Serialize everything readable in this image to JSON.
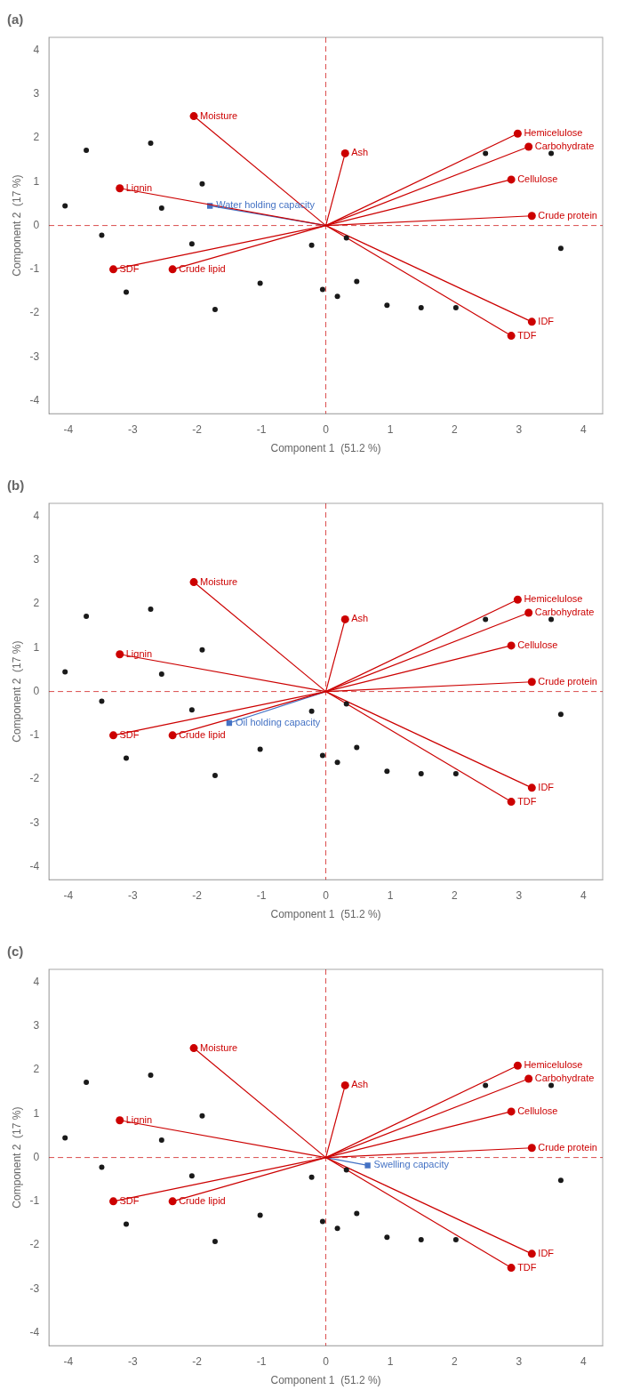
{
  "chart_data": [
    {
      "type": "scatter",
      "title": "(a)",
      "xlabel": "Component 1  (51.2 %)",
      "ylabel": "Component 2  (17 %)",
      "xlim": [
        -4.3,
        4.3
      ],
      "ylim": [
        -4.3,
        4.3
      ],
      "xticks": [
        -4,
        -3,
        -2,
        -1,
        0,
        1,
        2,
        3,
        4
      ],
      "yticks": [
        -4,
        -3,
        -2,
        -1,
        0,
        1,
        2,
        3,
        4
      ],
      "grid": false,
      "reference_lines": [
        {
          "axis": "y",
          "value": 0,
          "color": "#CC0000",
          "line_style": "dashed"
        },
        {
          "axis": "x",
          "value": 0,
          "color": "#CC0000",
          "line_style": "dashed"
        }
      ],
      "series": [
        {
          "type": "scatter",
          "color": "#1a1a1a",
          "marker": "circle",
          "x": [
            -4.05,
            -3.72,
            -3.48,
            -3.1,
            -2.72,
            -2.55,
            -2.08,
            -1.92,
            -1.72,
            -1.02,
            -0.22,
            0.18,
            0.48,
            0.95,
            1.48,
            2.02,
            2.48,
            3.5,
            3.65,
            -0.05,
            0.32
          ],
          "y": [
            0.45,
            1.72,
            -0.22,
            -1.52,
            1.88,
            0.4,
            -0.42,
            0.95,
            -1.92,
            -1.32,
            -0.45,
            -1.62,
            -1.28,
            -1.82,
            -1.88,
            -1.88,
            1.65,
            1.65,
            -0.52,
            -1.46,
            -0.28
          ]
        },
        {
          "type": "vector",
          "color": "#CC0000",
          "marker": "circle",
          "x": [
            -2.05,
            0.3,
            2.98,
            3.15,
            2.88,
            3.2,
            -3.2,
            -2.38,
            -3.3,
            3.2,
            2.88
          ],
          "y": [
            2.5,
            1.65,
            2.1,
            1.8,
            1.05,
            0.22,
            0.85,
            -1.0,
            -1.0,
            -2.2,
            -2.52
          ],
          "point_labels": [
            "Moisture",
            "Ash",
            "Hemicelulose",
            "Carbohydrate",
            "Cellulose",
            "Crude protein",
            "Lignin",
            "Crude lipid",
            "SDF",
            "IDF",
            "TDF"
          ]
        },
        {
          "type": "vector",
          "color": "#4472C4",
          "marker": "square",
          "x": [
            -1.8
          ],
          "y": [
            0.45
          ],
          "point_labels": [
            "Water holding capacity"
          ]
        }
      ]
    },
    {
      "type": "scatter",
      "title": "(b)",
      "xlabel": "Component 1  (51.2 %)",
      "ylabel": "Component 2  (17 %)",
      "xlim": [
        -4.3,
        4.3
      ],
      "ylim": [
        -4.3,
        4.3
      ],
      "xticks": [
        -4,
        -3,
        -2,
        -1,
        0,
        1,
        2,
        3,
        4
      ],
      "yticks": [
        -4,
        -3,
        -2,
        -1,
        0,
        1,
        2,
        3,
        4
      ],
      "grid": false,
      "reference_lines": [
        {
          "axis": "y",
          "value": 0,
          "color": "#CC0000",
          "line_style": "dashed"
        },
        {
          "axis": "x",
          "value": 0,
          "color": "#CC0000",
          "line_style": "dashed"
        }
      ],
      "series": [
        {
          "type": "scatter",
          "color": "#1a1a1a",
          "marker": "circle",
          "x": [
            -4.05,
            -3.72,
            -3.48,
            -3.1,
            -2.72,
            -2.55,
            -2.08,
            -1.92,
            -1.72,
            -1.02,
            -0.22,
            0.18,
            0.48,
            0.95,
            1.48,
            2.02,
            2.48,
            3.5,
            3.65,
            -0.05,
            0.32
          ],
          "y": [
            0.45,
            1.72,
            -0.22,
            -1.52,
            1.88,
            0.4,
            -0.42,
            0.95,
            -1.92,
            -1.32,
            -0.45,
            -1.62,
            -1.28,
            -1.82,
            -1.88,
            -1.88,
            1.65,
            1.65,
            -0.52,
            -1.46,
            -0.28
          ]
        },
        {
          "type": "vector",
          "color": "#CC0000",
          "marker": "circle",
          "x": [
            -2.05,
            0.3,
            2.98,
            3.15,
            2.88,
            3.2,
            -3.2,
            -2.38,
            -3.3,
            3.2,
            2.88
          ],
          "y": [
            2.5,
            1.65,
            2.1,
            1.8,
            1.05,
            0.22,
            0.85,
            -1.0,
            -1.0,
            -2.2,
            -2.52
          ],
          "point_labels": [
            "Moisture",
            "Ash",
            "Hemicelulose",
            "Carbohydrate",
            "Cellulose",
            "Crude protein",
            "Lignin",
            "Crude lipid",
            "SDF",
            "IDF",
            "TDF"
          ]
        },
        {
          "type": "vector",
          "color": "#4472C4",
          "marker": "square",
          "x": [
            -1.5
          ],
          "y": [
            -0.72
          ],
          "point_labels": [
            "Oil holding capacity"
          ]
        }
      ]
    },
    {
      "type": "scatter",
      "title": "(c)",
      "xlabel": "Component 1  (51.2 %)",
      "ylabel": "Component 2  (17 %)",
      "xlim": [
        -4.3,
        4.3
      ],
      "ylim": [
        -4.3,
        4.3
      ],
      "xticks": [
        -4,
        -3,
        -2,
        -1,
        0,
        1,
        2,
        3,
        4
      ],
      "yticks": [
        -4,
        -3,
        -2,
        -1,
        0,
        1,
        2,
        3,
        4
      ],
      "grid": false,
      "reference_lines": [
        {
          "axis": "y",
          "value": 0,
          "color": "#CC0000",
          "line_style": "dashed"
        },
        {
          "axis": "x",
          "value": 0,
          "color": "#CC0000",
          "line_style": "dashed"
        }
      ],
      "series": [
        {
          "type": "scatter",
          "color": "#1a1a1a",
          "marker": "circle",
          "x": [
            -4.05,
            -3.72,
            -3.48,
            -3.1,
            -2.72,
            -2.55,
            -2.08,
            -1.92,
            -1.72,
            -1.02,
            -0.22,
            0.18,
            0.48,
            0.95,
            1.48,
            2.02,
            2.48,
            3.5,
            3.65,
            -0.05,
            0.32
          ],
          "y": [
            0.45,
            1.72,
            -0.22,
            -1.52,
            1.88,
            0.4,
            -0.42,
            0.95,
            -1.92,
            -1.32,
            -0.45,
            -1.62,
            -1.28,
            -1.82,
            -1.88,
            -1.88,
            1.65,
            1.65,
            -0.52,
            -1.46,
            -0.28
          ]
        },
        {
          "type": "vector",
          "color": "#CC0000",
          "marker": "circle",
          "x": [
            -2.05,
            0.3,
            2.98,
            3.15,
            2.88,
            3.2,
            -3.2,
            -2.38,
            -3.3,
            3.2,
            2.88
          ],
          "y": [
            2.5,
            1.65,
            2.1,
            1.8,
            1.05,
            0.22,
            0.85,
            -1.0,
            -1.0,
            -2.2,
            -2.52
          ],
          "point_labels": [
            "Moisture",
            "Ash",
            "Hemicelulose",
            "Carbohydrate",
            "Cellulose",
            "Crude protein",
            "Lignin",
            "Crude lipid",
            "SDF",
            "IDF",
            "TDF"
          ]
        },
        {
          "type": "vector",
          "color": "#4472C4",
          "marker": "square",
          "x": [
            0.65
          ],
          "y": [
            -0.18
          ],
          "point_labels": [
            "Swelling capacity"
          ]
        }
      ]
    }
  ]
}
